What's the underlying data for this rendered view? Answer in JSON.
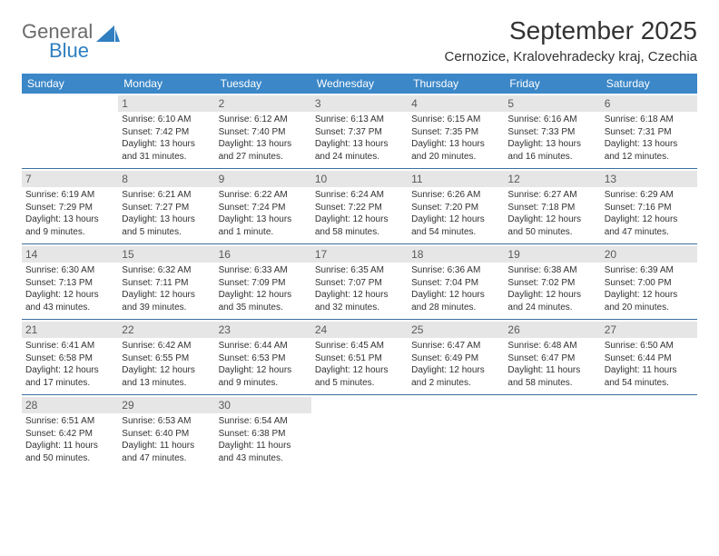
{
  "brand": {
    "line1": "General",
    "line2": "Blue",
    "color_gray": "#6b6b6b",
    "color_blue": "#2f7fc1"
  },
  "title": "September 2025",
  "location": "Cernozice, Kralovehradecky kraj, Czechia",
  "colors": {
    "header_bg": "#3b87c8",
    "header_fg": "#ffffff",
    "daynum_bg": "#e6e6e6",
    "daynum_fg": "#5a5a5a",
    "rule": "#3b6fa0",
    "text": "#323232",
    "page_bg": "#ffffff"
  },
  "day_headers": [
    "Sunday",
    "Monday",
    "Tuesday",
    "Wednesday",
    "Thursday",
    "Friday",
    "Saturday"
  ],
  "weeks": [
    [
      {
        "n": "",
        "sr": "",
        "ss": "",
        "dl1": "",
        "dl2": ""
      },
      {
        "n": "1",
        "sr": "Sunrise: 6:10 AM",
        "ss": "Sunset: 7:42 PM",
        "dl1": "Daylight: 13 hours",
        "dl2": "and 31 minutes."
      },
      {
        "n": "2",
        "sr": "Sunrise: 6:12 AM",
        "ss": "Sunset: 7:40 PM",
        "dl1": "Daylight: 13 hours",
        "dl2": "and 27 minutes."
      },
      {
        "n": "3",
        "sr": "Sunrise: 6:13 AM",
        "ss": "Sunset: 7:37 PM",
        "dl1": "Daylight: 13 hours",
        "dl2": "and 24 minutes."
      },
      {
        "n": "4",
        "sr": "Sunrise: 6:15 AM",
        "ss": "Sunset: 7:35 PM",
        "dl1": "Daylight: 13 hours",
        "dl2": "and 20 minutes."
      },
      {
        "n": "5",
        "sr": "Sunrise: 6:16 AM",
        "ss": "Sunset: 7:33 PM",
        "dl1": "Daylight: 13 hours",
        "dl2": "and 16 minutes."
      },
      {
        "n": "6",
        "sr": "Sunrise: 6:18 AM",
        "ss": "Sunset: 7:31 PM",
        "dl1": "Daylight: 13 hours",
        "dl2": "and 12 minutes."
      }
    ],
    [
      {
        "n": "7",
        "sr": "Sunrise: 6:19 AM",
        "ss": "Sunset: 7:29 PM",
        "dl1": "Daylight: 13 hours",
        "dl2": "and 9 minutes."
      },
      {
        "n": "8",
        "sr": "Sunrise: 6:21 AM",
        "ss": "Sunset: 7:27 PM",
        "dl1": "Daylight: 13 hours",
        "dl2": "and 5 minutes."
      },
      {
        "n": "9",
        "sr": "Sunrise: 6:22 AM",
        "ss": "Sunset: 7:24 PM",
        "dl1": "Daylight: 13 hours",
        "dl2": "and 1 minute."
      },
      {
        "n": "10",
        "sr": "Sunrise: 6:24 AM",
        "ss": "Sunset: 7:22 PM",
        "dl1": "Daylight: 12 hours",
        "dl2": "and 58 minutes."
      },
      {
        "n": "11",
        "sr": "Sunrise: 6:26 AM",
        "ss": "Sunset: 7:20 PM",
        "dl1": "Daylight: 12 hours",
        "dl2": "and 54 minutes."
      },
      {
        "n": "12",
        "sr": "Sunrise: 6:27 AM",
        "ss": "Sunset: 7:18 PM",
        "dl1": "Daylight: 12 hours",
        "dl2": "and 50 minutes."
      },
      {
        "n": "13",
        "sr": "Sunrise: 6:29 AM",
        "ss": "Sunset: 7:16 PM",
        "dl1": "Daylight: 12 hours",
        "dl2": "and 47 minutes."
      }
    ],
    [
      {
        "n": "14",
        "sr": "Sunrise: 6:30 AM",
        "ss": "Sunset: 7:13 PM",
        "dl1": "Daylight: 12 hours",
        "dl2": "and 43 minutes."
      },
      {
        "n": "15",
        "sr": "Sunrise: 6:32 AM",
        "ss": "Sunset: 7:11 PM",
        "dl1": "Daylight: 12 hours",
        "dl2": "and 39 minutes."
      },
      {
        "n": "16",
        "sr": "Sunrise: 6:33 AM",
        "ss": "Sunset: 7:09 PM",
        "dl1": "Daylight: 12 hours",
        "dl2": "and 35 minutes."
      },
      {
        "n": "17",
        "sr": "Sunrise: 6:35 AM",
        "ss": "Sunset: 7:07 PM",
        "dl1": "Daylight: 12 hours",
        "dl2": "and 32 minutes."
      },
      {
        "n": "18",
        "sr": "Sunrise: 6:36 AM",
        "ss": "Sunset: 7:04 PM",
        "dl1": "Daylight: 12 hours",
        "dl2": "and 28 minutes."
      },
      {
        "n": "19",
        "sr": "Sunrise: 6:38 AM",
        "ss": "Sunset: 7:02 PM",
        "dl1": "Daylight: 12 hours",
        "dl2": "and 24 minutes."
      },
      {
        "n": "20",
        "sr": "Sunrise: 6:39 AM",
        "ss": "Sunset: 7:00 PM",
        "dl1": "Daylight: 12 hours",
        "dl2": "and 20 minutes."
      }
    ],
    [
      {
        "n": "21",
        "sr": "Sunrise: 6:41 AM",
        "ss": "Sunset: 6:58 PM",
        "dl1": "Daylight: 12 hours",
        "dl2": "and 17 minutes."
      },
      {
        "n": "22",
        "sr": "Sunrise: 6:42 AM",
        "ss": "Sunset: 6:55 PM",
        "dl1": "Daylight: 12 hours",
        "dl2": "and 13 minutes."
      },
      {
        "n": "23",
        "sr": "Sunrise: 6:44 AM",
        "ss": "Sunset: 6:53 PM",
        "dl1": "Daylight: 12 hours",
        "dl2": "and 9 minutes."
      },
      {
        "n": "24",
        "sr": "Sunrise: 6:45 AM",
        "ss": "Sunset: 6:51 PM",
        "dl1": "Daylight: 12 hours",
        "dl2": "and 5 minutes."
      },
      {
        "n": "25",
        "sr": "Sunrise: 6:47 AM",
        "ss": "Sunset: 6:49 PM",
        "dl1": "Daylight: 12 hours",
        "dl2": "and 2 minutes."
      },
      {
        "n": "26",
        "sr": "Sunrise: 6:48 AM",
        "ss": "Sunset: 6:47 PM",
        "dl1": "Daylight: 11 hours",
        "dl2": "and 58 minutes."
      },
      {
        "n": "27",
        "sr": "Sunrise: 6:50 AM",
        "ss": "Sunset: 6:44 PM",
        "dl1": "Daylight: 11 hours",
        "dl2": "and 54 minutes."
      }
    ],
    [
      {
        "n": "28",
        "sr": "Sunrise: 6:51 AM",
        "ss": "Sunset: 6:42 PM",
        "dl1": "Daylight: 11 hours",
        "dl2": "and 50 minutes."
      },
      {
        "n": "29",
        "sr": "Sunrise: 6:53 AM",
        "ss": "Sunset: 6:40 PM",
        "dl1": "Daylight: 11 hours",
        "dl2": "and 47 minutes."
      },
      {
        "n": "30",
        "sr": "Sunrise: 6:54 AM",
        "ss": "Sunset: 6:38 PM",
        "dl1": "Daylight: 11 hours",
        "dl2": "and 43 minutes."
      },
      {
        "n": "",
        "sr": "",
        "ss": "",
        "dl1": "",
        "dl2": ""
      },
      {
        "n": "",
        "sr": "",
        "ss": "",
        "dl1": "",
        "dl2": ""
      },
      {
        "n": "",
        "sr": "",
        "ss": "",
        "dl1": "",
        "dl2": ""
      },
      {
        "n": "",
        "sr": "",
        "ss": "",
        "dl1": "",
        "dl2": ""
      }
    ]
  ]
}
